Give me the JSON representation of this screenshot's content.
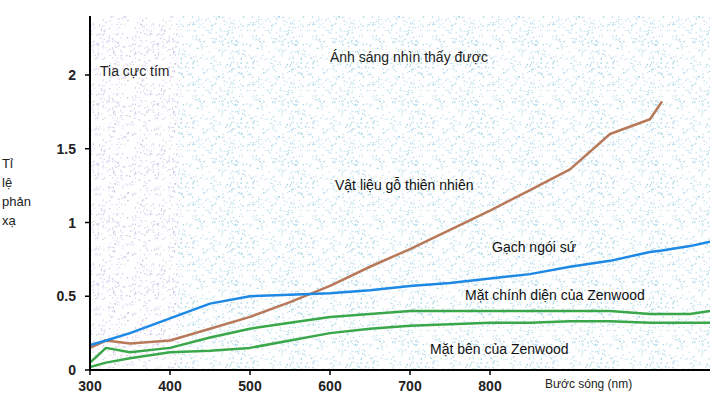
{
  "chart_data": {
    "type": "line",
    "xlabel": "Bước sóng (nm)",
    "ylabel": "Tỉ lệ phản xạ",
    "xlim": [
      300,
      1075
    ],
    "ylim": [
      0,
      2.4
    ],
    "xticks": [
      300,
      400,
      500,
      600,
      700,
      800
    ],
    "yticks": [
      0,
      0.5,
      1,
      1.5,
      2
    ],
    "regions": [
      {
        "label": "Tia cực tím",
        "from": 300,
        "to": 410,
        "color": "#cbbde3"
      },
      {
        "label": "Ánh sáng nhìn thấy được",
        "from": 410,
        "to": 1075,
        "color": "#9fd0e3"
      }
    ],
    "x": [
      300,
      320,
      350,
      400,
      450,
      500,
      550,
      600,
      650,
      700,
      750,
      800,
      850,
      900,
      950,
      1000,
      1015,
      1050,
      1075
    ],
    "series": [
      {
        "name": "Vật liệu gỗ thiên nhiên",
        "color": "#b8795a",
        "values": [
          0.15,
          0.2,
          0.18,
          0.2,
          0.28,
          0.36,
          0.46,
          0.57,
          0.7,
          0.82,
          0.95,
          1.08,
          1.22,
          1.36,
          1.6,
          1.7,
          1.82,
          null,
          null
        ]
      },
      {
        "name": "Gạch ngói sứ",
        "color": "#1e88e5",
        "values": [
          0.17,
          0.2,
          0.25,
          0.35,
          0.45,
          0.5,
          0.51,
          0.52,
          0.54,
          0.57,
          0.59,
          0.62,
          0.65,
          0.7,
          0.74,
          0.8,
          0.81,
          0.84,
          0.87
        ]
      },
      {
        "name": "Mặt chính diện của Zenwood",
        "color": "#3aa84a",
        "values": [
          0.05,
          0.15,
          0.12,
          0.15,
          0.22,
          0.28,
          0.32,
          0.36,
          0.38,
          0.4,
          0.4,
          0.4,
          0.4,
          0.4,
          0.4,
          0.38,
          0.38,
          0.38,
          0.4
        ]
      },
      {
        "name": "Mặt bên của Zenwood",
        "color": "#3aa84a",
        "values": [
          0.02,
          0.05,
          0.08,
          0.12,
          0.13,
          0.15,
          0.2,
          0.25,
          0.28,
          0.3,
          0.31,
          0.32,
          0.32,
          0.33,
          0.33,
          0.32,
          0.32,
          0.32,
          0.32
        ]
      }
    ]
  }
}
